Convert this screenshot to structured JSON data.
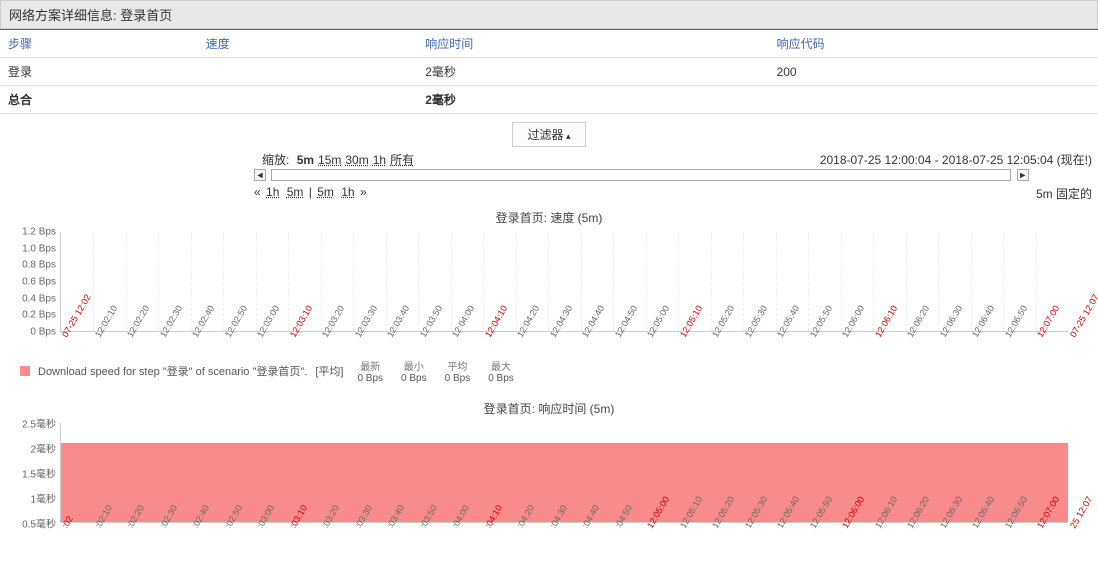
{
  "header": {
    "title": "网络方案详细信息: 登录首页"
  },
  "table": {
    "columns": [
      "步骤",
      "速度",
      "响应时间",
      "响应代码"
    ],
    "rows": [
      {
        "step": "登录",
        "speed": "",
        "resp_time": "2毫秒",
        "resp_code": "200"
      }
    ],
    "total": {
      "step": "总合",
      "speed": "",
      "resp_time": "2毫秒",
      "resp_code": ""
    }
  },
  "filter": {
    "label": "过滤器"
  },
  "zoom": {
    "label": "缩放:",
    "options": [
      "5m",
      "15m",
      "30m",
      "1h",
      "所有"
    ],
    "active": "5m",
    "range_text": "2018-07-25 12:00:04 - 2018-07-25 12:05:04 (现在!)"
  },
  "shift": {
    "left_arrows": "«",
    "left_opts": [
      "1h",
      "5m"
    ],
    "sep": "|",
    "right_opts": [
      "5m",
      "1h"
    ],
    "right_arrows": "»",
    "fixed_label": "5m 固定的"
  },
  "nav_arrows": {
    "left": "◄",
    "right": "►"
  },
  "chart1": {
    "type": "line",
    "title": "登录首页: 速度 (5m)",
    "y_ticks": [
      "1.2 Bps",
      "1.0 Bps",
      "0.8 Bps",
      "0.6 Bps",
      "0.4 Bps",
      "0.2 Bps",
      "0 Bps"
    ],
    "ylim": [
      0,
      1.2
    ],
    "x_ticks": [
      {
        "label": "07-25 12:02",
        "red": true
      },
      {
        "label": "12:02:10"
      },
      {
        "label": "12:02:20"
      },
      {
        "label": "12:02:30"
      },
      {
        "label": "12:02:40"
      },
      {
        "label": "12:02:50"
      },
      {
        "label": "12:03:00"
      },
      {
        "label": "12:03:10",
        "red": true
      },
      {
        "label": "12:03:20"
      },
      {
        "label": "12:03:30"
      },
      {
        "label": "12:03:40"
      },
      {
        "label": "12:03:50"
      },
      {
        "label": "12:04:00"
      },
      {
        "label": "12:04:10",
        "red": true
      },
      {
        "label": "12:04:20"
      },
      {
        "label": "12:04:30"
      },
      {
        "label": "12:04:40"
      },
      {
        "label": "12:04:50"
      },
      {
        "label": "12:05:00"
      },
      {
        "label": "12:05:10",
        "red": true
      },
      {
        "label": "12:05:20"
      },
      {
        "label": "12:05:30"
      },
      {
        "label": "12:05:40"
      },
      {
        "label": "12:05:50"
      },
      {
        "label": "12:06:00"
      },
      {
        "label": "12:06:10",
        "red": true
      },
      {
        "label": "12:06:20"
      },
      {
        "label": "12:06:30"
      },
      {
        "label": "12:06:40"
      },
      {
        "label": "12:06:50"
      },
      {
        "label": "12:07:00",
        "red": true
      },
      {
        "label": "07-25 12:07",
        "red": true
      }
    ],
    "background_color": "#ffffff",
    "grid_color": "#eeeeee",
    "legend": {
      "swatch_color": "#f98b8b",
      "text": "Download speed for step \"登录\" of scenario \"登录首页\".",
      "avg_label": "[平均]",
      "stats": [
        {
          "h": "最新",
          "v": "0 Bps"
        },
        {
          "h": "最小",
          "v": "0 Bps"
        },
        {
          "h": "平均",
          "v": "0 Bps"
        },
        {
          "h": "最大",
          "v": "0 Bps"
        }
      ]
    }
  },
  "chart2": {
    "type": "area",
    "title": "登录首页: 响应时间 (5m)",
    "y_ticks": [
      "2.5毫秒",
      "2毫秒",
      "1.5毫秒",
      "1毫秒",
      "0.5毫秒"
    ],
    "ylim": [
      0,
      2.5
    ],
    "value": 2,
    "fill_color": "#f98b8b",
    "x_ticks": [
      {
        "label": ":02",
        "red": true
      },
      {
        "label": ":02:10"
      },
      {
        "label": ":02:20"
      },
      {
        "label": ":02:30"
      },
      {
        "label": ":02:40"
      },
      {
        "label": ":02:50"
      },
      {
        "label": ":03:00"
      },
      {
        "label": ":03:10",
        "red": true
      },
      {
        "label": ":03:20"
      },
      {
        "label": ":03:30"
      },
      {
        "label": ":03:40"
      },
      {
        "label": ":03:50"
      },
      {
        "label": ":04:00"
      },
      {
        "label": ":04:10",
        "red": true
      },
      {
        "label": ":04:20"
      },
      {
        "label": ":04:30"
      },
      {
        "label": ":04:40"
      },
      {
        "label": ":04:50"
      },
      {
        "label": "12:05:00",
        "red": true
      },
      {
        "label": "12:05:10"
      },
      {
        "label": "12:05:20"
      },
      {
        "label": "12:05:30"
      },
      {
        "label": "12:05:40"
      },
      {
        "label": "12:05:50"
      },
      {
        "label": "12:06:00",
        "red": true
      },
      {
        "label": "12:06:10"
      },
      {
        "label": "12:06:20"
      },
      {
        "label": "12:06:30"
      },
      {
        "label": "12:06:40"
      },
      {
        "label": "12:06:50"
      },
      {
        "label": "12:07:00",
        "red": true
      },
      {
        "label": "25 12:07",
        "red": true
      }
    ],
    "background_color": "#ffffff"
  }
}
